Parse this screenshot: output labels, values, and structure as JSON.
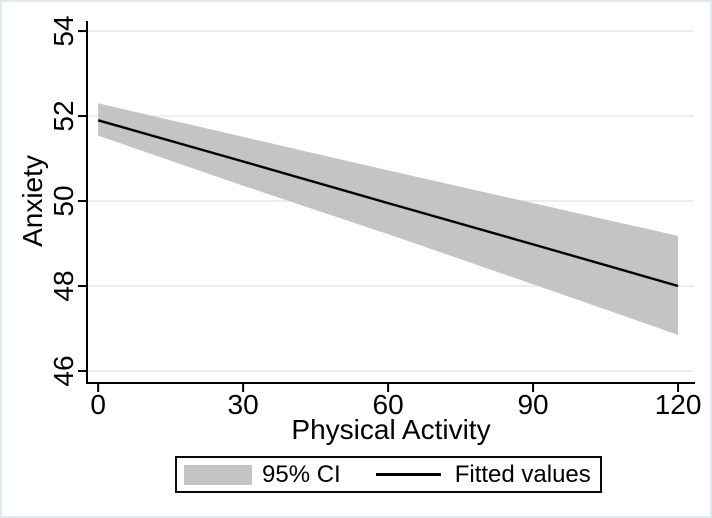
{
  "chart_data": {
    "type": "line",
    "title": "",
    "xlabel": "Physical Activity",
    "ylabel": "Anxiety",
    "x": [
      0,
      30,
      60,
      90,
      120
    ],
    "series": [
      {
        "name": "Fitted values",
        "values": [
          51.9,
          50.93,
          49.95,
          48.98,
          48.0
        ]
      },
      {
        "name": "95% CI upper",
        "values": [
          52.3,
          51.51,
          50.72,
          49.95,
          49.18
        ]
      },
      {
        "name": "95% CI lower",
        "values": [
          51.54,
          50.36,
          49.22,
          48.04,
          46.85
        ]
      }
    ],
    "legend": [
      "95% CI",
      "Fitted values"
    ],
    "legend_position": "bottom-center",
    "xticks": [
      0,
      30,
      60,
      90,
      120
    ],
    "yticks": [
      46,
      48,
      50,
      52,
      54
    ],
    "xlim": [
      -2.1,
      123.3
    ],
    "ylim": [
      45.74,
      54.19
    ],
    "grid": "horizontal",
    "colors": {
      "band": "#c4c4c4",
      "fitted_line": "#000000",
      "gridline": "#e2edf0",
      "axis": "#000000",
      "frame_border": "#dfecef",
      "background": "#ffffff",
      "text": "#000000"
    }
  }
}
